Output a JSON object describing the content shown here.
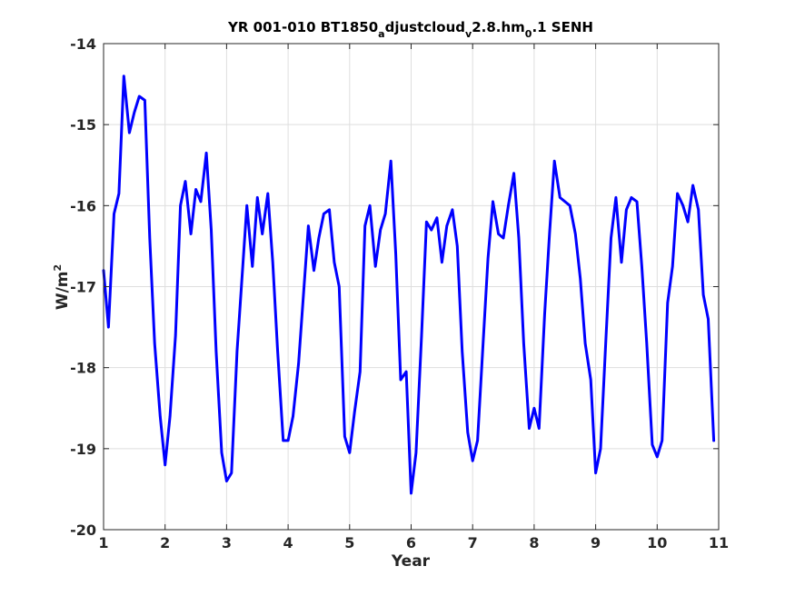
{
  "chart_data": {
    "type": "line",
    "title": {
      "t1": "YR 001-010 BT1850",
      "s1": "a",
      "t2": "djustcloud",
      "s2": "v",
      "t3": "2.8.hm",
      "s3": "0",
      "t4": ".1 SENH"
    },
    "xlabel": "Year",
    "ylabel": {
      "base": "W/m",
      "sup": "2"
    },
    "xlim": [
      1,
      11
    ],
    "ylim": [
      -20,
      -14
    ],
    "xticks": [
      1,
      2,
      3,
      4,
      5,
      6,
      7,
      8,
      9,
      10,
      11
    ],
    "yticks": [
      -20,
      -19,
      -18,
      -17,
      -16,
      -15,
      -14
    ],
    "grid": true,
    "line_color": "#0000ff",
    "series": [
      {
        "x": [
          1.0,
          1.08,
          1.17,
          1.25,
          1.33,
          1.42,
          1.5,
          1.58,
          1.67,
          1.75,
          1.83,
          1.92,
          2.0,
          2.08,
          2.17,
          2.25,
          2.33,
          2.42,
          2.5,
          2.58,
          2.67,
          2.75,
          2.83,
          2.92,
          3.0,
          3.08,
          3.17,
          3.25,
          3.33,
          3.42,
          3.5,
          3.58,
          3.67,
          3.75,
          3.83,
          3.92,
          4.0,
          4.08,
          4.17,
          4.25,
          4.33,
          4.42,
          4.5,
          4.58,
          4.67,
          4.75,
          4.83,
          4.92,
          5.0,
          5.08,
          5.17,
          5.25,
          5.33,
          5.42,
          5.5,
          5.58,
          5.67,
          5.75,
          5.83,
          5.92,
          6.0,
          6.08,
          6.17,
          6.25,
          6.33,
          6.42,
          6.5,
          6.58,
          6.67,
          6.75,
          6.83,
          6.92,
          7.0,
          7.08,
          7.17,
          7.25,
          7.33,
          7.42,
          7.5,
          7.58,
          7.67,
          7.75,
          7.83,
          7.92,
          8.0,
          8.08,
          8.17,
          8.25,
          8.33,
          8.42,
          8.5,
          8.58,
          8.67,
          8.75,
          8.83,
          8.92,
          9.0,
          9.08,
          9.17,
          9.25,
          9.33,
          9.42,
          9.5,
          9.58,
          9.67,
          9.75,
          9.83,
          9.92,
          10.0,
          10.08,
          10.17,
          10.25,
          10.33,
          10.42,
          10.5,
          10.58,
          10.67,
          10.75,
          10.83,
          10.92
        ],
        "y": [
          -16.8,
          -17.5,
          -16.1,
          -15.85,
          -14.4,
          -15.1,
          -14.85,
          -14.65,
          -14.7,
          -16.4,
          -17.7,
          -18.6,
          -19.2,
          -18.6,
          -17.6,
          -16.0,
          -15.7,
          -16.35,
          -15.8,
          -15.95,
          -15.35,
          -16.3,
          -17.8,
          -19.05,
          -19.4,
          -19.3,
          -17.8,
          -16.9,
          -16.0,
          -16.75,
          -15.9,
          -16.35,
          -15.85,
          -16.7,
          -17.8,
          -18.9,
          -18.9,
          -18.6,
          -17.95,
          -17.1,
          -16.25,
          -16.8,
          -16.4,
          -16.1,
          -16.05,
          -16.7,
          -17.0,
          -18.85,
          -19.05,
          -18.55,
          -18.05,
          -16.25,
          -16.0,
          -16.75,
          -16.3,
          -16.1,
          -15.45,
          -16.6,
          -18.15,
          -18.05,
          -19.55,
          -19.05,
          -17.6,
          -16.2,
          -16.3,
          -16.15,
          -16.7,
          -16.25,
          -16.05,
          -16.5,
          -17.8,
          -18.8,
          -19.15,
          -18.9,
          -17.7,
          -16.65,
          -15.95,
          -16.35,
          -16.4,
          -16.0,
          -15.6,
          -16.4,
          -17.7,
          -18.75,
          -18.5,
          -18.75,
          -17.35,
          -16.35,
          -15.45,
          -15.9,
          -15.95,
          -16.0,
          -16.35,
          -16.9,
          -17.7,
          -18.15,
          -19.3,
          -19.0,
          -17.6,
          -16.4,
          -15.9,
          -16.7,
          -16.05,
          -15.9,
          -15.95,
          -16.75,
          -17.7,
          -18.95,
          -19.1,
          -18.9,
          -17.2,
          -16.75,
          -15.85,
          -16.0,
          -16.2,
          -15.75,
          -16.05,
          -17.1,
          -17.4,
          -18.9
        ]
      }
    ]
  }
}
